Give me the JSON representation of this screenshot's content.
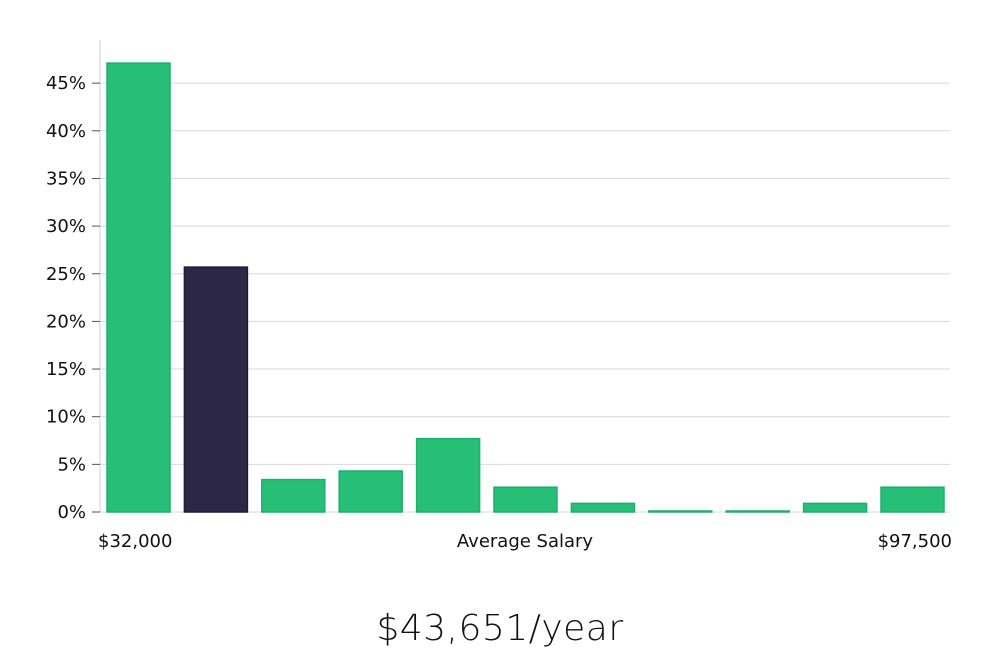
{
  "chart_data": {
    "type": "bar",
    "title": "",
    "xlabel": "Average Salary",
    "ylabel": "",
    "x_range_labels": {
      "min": "$32,000",
      "max": "$97,500"
    },
    "ylim": [
      0,
      50
    ],
    "yticks": [
      0,
      5,
      10,
      15,
      20,
      25,
      30,
      35,
      40,
      45
    ],
    "ytick_labels": [
      "0%",
      "5%",
      "10%",
      "15%",
      "20%",
      "25%",
      "30%",
      "35%",
      "40%",
      "45%"
    ],
    "values": [
      47.1,
      25.7,
      3.4,
      4.3,
      7.7,
      2.6,
      0.9,
      0.1,
      0.1,
      0.9,
      2.6
    ],
    "highlight_index": 1,
    "grid": true
  },
  "summary": {
    "salary_text": "$43,651/year"
  },
  "colors": {
    "bar": "#27bf78",
    "bar_stroke": "#1fae6a",
    "highlight": "#2b2745",
    "grid": "#d9d9d9",
    "axis": "#cfcfcf"
  }
}
